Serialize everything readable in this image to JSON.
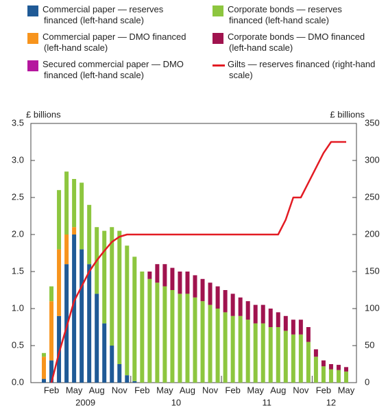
{
  "chart_data": {
    "type": "stacked-bar-line",
    "y_label": "£ billions",
    "y2_label": "£ billions",
    "categories": [
      null,
      "Feb",
      null,
      null,
      "May",
      null,
      null,
      "Aug",
      null,
      null,
      "Nov",
      null,
      null,
      "Feb",
      null,
      null,
      "May",
      null,
      null,
      "Aug",
      null,
      null,
      "Nov",
      null,
      null,
      "Feb",
      null,
      null,
      "May",
      null,
      null,
      "Aug",
      null,
      null,
      "Nov",
      null,
      null,
      "Feb",
      null,
      null,
      "May"
    ],
    "groups": [
      {
        "label": "2009",
        "months": 12
      },
      {
        "label": "10",
        "months": 12
      },
      {
        "label": "11",
        "months": 12
      },
      {
        "label": "12",
        "months": 5
      }
    ],
    "ylim": [
      0,
      3.5
    ],
    "yticks": [
      {
        "value": 0,
        "label": "0.0"
      },
      0.5,
      {
        "value": 1,
        "label": "1.0"
      },
      1.5,
      {
        "value": 2,
        "label": "2.0"
      },
      2.5,
      {
        "value": 3,
        "label": "3.0"
      },
      3.5
    ],
    "y2lim": [
      0,
      350
    ],
    "y2ticks": [
      0,
      50,
      100,
      150,
      200,
      250,
      300,
      350
    ],
    "series": [
      {
        "name": "Commercial paper — reserves financed (left-hand scale)",
        "color": "#1f5a96",
        "kind": "bar",
        "values": [
          0.05,
          0.3,
          0.9,
          1.6,
          2.0,
          1.8,
          1.6,
          1.2,
          0.8,
          0.5,
          0.25,
          0.1,
          0.02,
          0,
          0,
          0,
          0,
          0,
          0,
          0,
          0,
          0,
          0,
          0,
          0,
          0,
          0,
          0,
          0,
          0,
          0,
          0,
          0,
          0,
          0,
          0,
          0,
          0,
          0,
          0,
          0
        ]
      },
      {
        "name": "Commercial paper — DMO financed (left-hand scale)",
        "color": "#f7941d",
        "kind": "bar",
        "values": [
          0.3,
          0.8,
          0.9,
          0.4,
          0.1,
          0,
          0,
          0,
          0,
          0,
          0,
          0,
          0,
          0,
          0,
          0,
          0,
          0,
          0,
          0,
          0,
          0,
          0,
          0,
          0,
          0,
          0,
          0,
          0,
          0,
          0,
          0,
          0,
          0,
          0,
          0,
          0,
          0,
          0,
          0,
          0
        ]
      },
      {
        "name": "Secured commercial paper — DMO financed (left-hand scale)",
        "color": "#b5179e",
        "kind": "bar",
        "values": [
          0,
          0,
          0,
          0,
          0,
          0,
          0,
          0,
          0,
          0,
          0,
          0,
          0,
          0,
          0,
          0,
          0,
          0,
          0,
          0,
          0,
          0,
          0,
          0,
          0,
          0,
          0,
          0,
          0,
          0,
          0,
          0,
          0,
          0,
          0,
          0,
          0,
          0,
          0,
          0,
          0
        ]
      },
      {
        "name": "Corporate bonds — reserves financed (left-hand scale)",
        "color": "#8dc63f",
        "kind": "bar",
        "values": [
          0.05,
          0.2,
          0.8,
          0.85,
          0.65,
          0.9,
          0.8,
          0.9,
          1.25,
          1.6,
          1.8,
          1.75,
          1.68,
          1.5,
          1.4,
          1.35,
          1.3,
          1.25,
          1.2,
          1.2,
          1.15,
          1.1,
          1.05,
          1.0,
          0.95,
          0.9,
          0.9,
          0.85,
          0.8,
          0.8,
          0.75,
          0.75,
          0.7,
          0.65,
          0.65,
          0.55,
          0.35,
          0.22,
          0.18,
          0.17,
          0.15
        ]
      },
      {
        "name": "Corporate bonds — DMO financed (left-hand scale)",
        "color": "#a0134e",
        "kind": "bar",
        "values": [
          0,
          0,
          0,
          0,
          0,
          0,
          0,
          0,
          0,
          0,
          0,
          0,
          0,
          0,
          0.1,
          0.25,
          0.3,
          0.3,
          0.3,
          0.3,
          0.3,
          0.3,
          0.3,
          0.3,
          0.3,
          0.3,
          0.25,
          0.25,
          0.25,
          0.25,
          0.25,
          0.2,
          0.2,
          0.2,
          0.2,
          0.2,
          0.1,
          0.08,
          0.07,
          0.07,
          0.06
        ]
      },
      {
        "name": "Gilts — reserves financed (right-hand scale)",
        "color": "#e31b23",
        "kind": "line",
        "axis": "y2",
        "values": [
          null,
          0,
          40,
          75,
          110,
          130,
          150,
          165,
          178,
          190,
          197,
          200,
          200,
          200,
          200,
          200,
          200,
          200,
          200,
          200,
          200,
          200,
          200,
          200,
          200,
          200,
          200,
          200,
          200,
          200,
          200,
          200,
          220,
          250,
          250,
          270,
          290,
          310,
          325,
          325,
          325
        ]
      }
    ]
  }
}
